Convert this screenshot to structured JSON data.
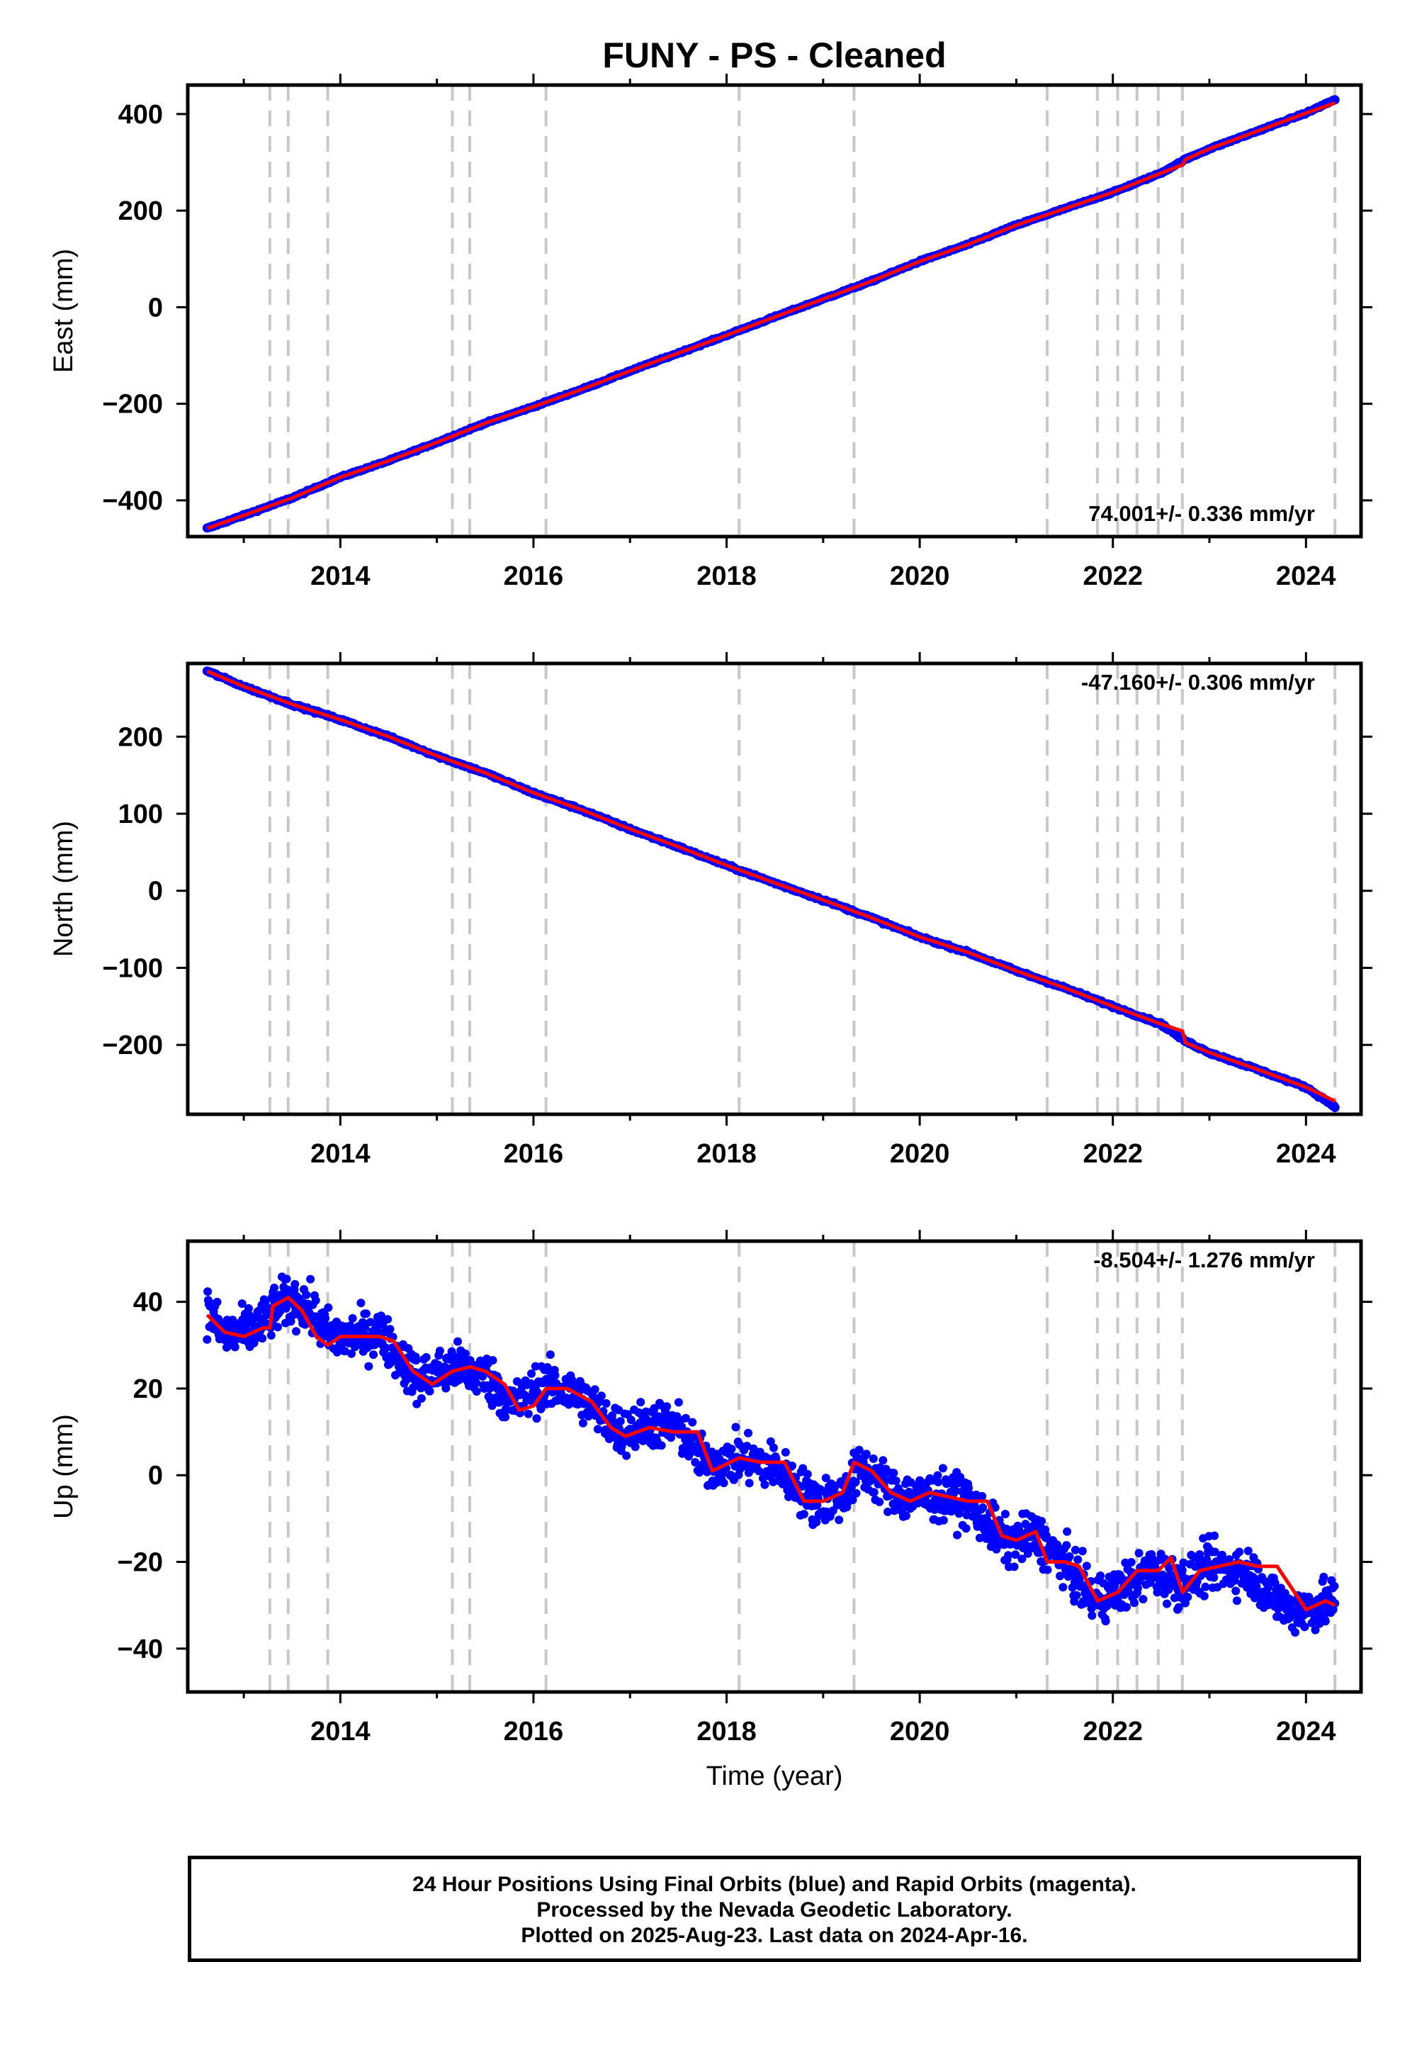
{
  "title": "FUNY  - PS - Cleaned",
  "xlabel": "Time (year)",
  "footer": {
    "line1": "24 Hour Positions Using Final Orbits (blue) and Rapid Orbits (magenta).",
    "line2": "Processed by the Nevada Geodetic Laboratory.",
    "line3": "Plotted on 2025-Aug-23. Last data on 2024-Apr-16."
  },
  "colors": {
    "observed_points": "#0000ff",
    "model_fit": "#ff0000",
    "event_lines": "#c8c8c8",
    "frame": "#000000"
  },
  "chart_data": [
    {
      "type": "scatter",
      "ylabel": "East (mm)",
      "rate_annotation": "74.001+/- 0.336 mm/yr",
      "xlim": [
        2012.42,
        2024.57
      ],
      "ylim": [
        -475,
        460
      ],
      "x_ticks": [
        2014,
        2016,
        2018,
        2020,
        2022,
        2024
      ],
      "y_ticks": [
        -400,
        -200,
        0,
        200,
        400
      ],
      "grid": false,
      "event_lines_x": [
        2013.27,
        2013.46,
        2013.87,
        2015.16,
        2015.34,
        2016.13,
        2018.13,
        2019.32,
        2021.32,
        2021.84,
        2022.05,
        2022.25,
        2022.47,
        2022.72,
        2024.3
      ],
      "series": [
        {
          "kind": "points",
          "x": [
            2012.62,
            2013.0,
            2013.5,
            2014.0,
            2014.5,
            2015.0,
            2015.5,
            2016.0,
            2016.5,
            2017.0,
            2017.5,
            2018.0,
            2018.5,
            2019.0,
            2019.5,
            2020.0,
            2020.5,
            2021.0,
            2021.5,
            2022.0,
            2022.5,
            2022.75,
            2023.0,
            2023.5,
            2024.0,
            2024.3
          ],
          "y": [
            -458,
            -431,
            -395,
            -352,
            -318,
            -280,
            -240,
            -206,
            -170,
            -132,
            -95,
            -58,
            -20,
            17,
            54,
            95,
            130,
            170,
            204,
            238,
            278,
            306,
            328,
            365,
            402,
            430
          ]
        },
        {
          "kind": "line",
          "x": [
            2012.62,
            2013.0,
            2013.5,
            2014.0,
            2014.5,
            2015.0,
            2015.5,
            2016.0,
            2016.5,
            2017.0,
            2017.5,
            2018.0,
            2018.5,
            2019.0,
            2019.5,
            2020.0,
            2020.5,
            2021.0,
            2021.5,
            2022.0,
            2022.5,
            2022.72,
            2022.75,
            2023.0,
            2023.5,
            2024.0,
            2024.3
          ],
          "y": [
            -458,
            -431,
            -395,
            -352,
            -318,
            -280,
            -240,
            -206,
            -170,
            -132,
            -95,
            -58,
            -20,
            17,
            54,
            95,
            130,
            170,
            204,
            238,
            278,
            295,
            306,
            328,
            365,
            402,
            423
          ]
        }
      ]
    },
    {
      "type": "scatter",
      "ylabel": "North (mm)",
      "rate_annotation": "-47.160+/- 0.306 mm/yr",
      "xlim": [
        2012.42,
        2024.57
      ],
      "ylim": [
        -290,
        295
      ],
      "x_ticks": [
        2014,
        2016,
        2018,
        2020,
        2022,
        2024
      ],
      "y_ticks": [
        -200,
        -100,
        0,
        100,
        200
      ],
      "grid": false,
      "event_lines_x": [
        2013.27,
        2013.46,
        2013.87,
        2015.16,
        2015.34,
        2016.13,
        2018.13,
        2019.32,
        2021.32,
        2021.84,
        2022.05,
        2022.25,
        2022.47,
        2022.72,
        2024.3
      ],
      "series": [
        {
          "kind": "points",
          "x": [
            2012.62,
            2013.0,
            2013.5,
            2014.0,
            2014.5,
            2015.0,
            2015.5,
            2016.0,
            2016.5,
            2017.0,
            2017.5,
            2018.0,
            2018.5,
            2019.0,
            2019.5,
            2020.0,
            2020.5,
            2021.0,
            2021.5,
            2022.0,
            2022.5,
            2022.75,
            2023.0,
            2023.5,
            2024.0,
            2024.3
          ],
          "y": [
            285,
            265,
            242,
            222,
            200,
            175,
            153,
            127,
            105,
            80,
            57,
            33,
            10,
            -12,
            -35,
            -60,
            -80,
            -104,
            -126,
            -150,
            -173,
            -195,
            -210,
            -232,
            -255,
            -280
          ]
        },
        {
          "kind": "line",
          "x": [
            2012.62,
            2013.0,
            2013.5,
            2014.0,
            2014.5,
            2015.0,
            2015.5,
            2016.0,
            2016.5,
            2017.0,
            2017.5,
            2018.0,
            2018.5,
            2019.0,
            2019.5,
            2020.0,
            2020.5,
            2021.0,
            2021.5,
            2022.0,
            2022.5,
            2022.72,
            2022.75,
            2023.0,
            2023.5,
            2024.0,
            2024.3
          ],
          "y": [
            285,
            265,
            242,
            222,
            200,
            175,
            153,
            127,
            105,
            80,
            57,
            33,
            10,
            -12,
            -35,
            -60,
            -80,
            -104,
            -126,
            -150,
            -173,
            -182,
            -197,
            -210,
            -232,
            -255,
            -273
          ]
        }
      ]
    },
    {
      "type": "scatter",
      "ylabel": "Up (mm)",
      "rate_annotation": "-8.504+/- 1.276 mm/yr",
      "xlim": [
        2012.42,
        2024.57
      ],
      "ylim": [
        -50,
        54
      ],
      "x_ticks": [
        2014,
        2016,
        2018,
        2020,
        2022,
        2024
      ],
      "y_ticks": [
        -40,
        -20,
        0,
        20,
        40
      ],
      "grid": false,
      "event_lines_x": [
        2013.27,
        2013.46,
        2013.87,
        2015.16,
        2015.34,
        2016.13,
        2018.13,
        2019.32,
        2021.32,
        2021.84,
        2022.05,
        2022.25,
        2022.47,
        2022.72,
        2024.3
      ],
      "series": [
        {
          "kind": "points",
          "x": [
            2012.62,
            2012.8,
            2013.0,
            2013.2,
            2013.4,
            2013.6,
            2013.9,
            2014.2,
            2014.4,
            2014.8,
            2015.2,
            2015.5,
            2015.8,
            2016.1,
            2016.5,
            2016.9,
            2017.2,
            2017.5,
            2017.8,
            2018.1,
            2018.5,
            2018.9,
            2019.2,
            2019.4,
            2019.8,
            2020.2,
            2020.5,
            2020.9,
            2021.2,
            2021.5,
            2021.8,
            2022.1,
            2022.4,
            2022.7,
            2023.0,
            2023.4,
            2023.8,
            2024.0,
            2024.3
          ],
          "y": [
            38,
            32,
            33,
            35,
            40,
            40,
            32,
            32,
            33,
            22,
            25,
            23,
            16,
            21,
            18,
            10,
            12,
            11,
            2,
            4,
            2,
            -6,
            -5,
            2,
            -5,
            -5,
            -6,
            -16,
            -14,
            -20,
            -29,
            -26,
            -22,
            -25,
            -21,
            -22,
            -31,
            -31,
            -29
          ]
        },
        {
          "kind": "line",
          "x": [
            2012.62,
            2012.8,
            2013.0,
            2013.2,
            2013.27,
            2013.3,
            2013.46,
            2013.6,
            2013.75,
            2013.87,
            2014.0,
            2014.2,
            2014.4,
            2014.55,
            2014.75,
            2014.95,
            2015.16,
            2015.34,
            2015.5,
            2015.7,
            2015.85,
            2016.0,
            2016.13,
            2016.35,
            2016.6,
            2016.8,
            2016.95,
            2017.2,
            2017.45,
            2017.7,
            2017.85,
            2018.13,
            2018.35,
            2018.6,
            2018.8,
            2019.0,
            2019.2,
            2019.32,
            2019.5,
            2019.7,
            2019.9,
            2020.1,
            2020.3,
            2020.5,
            2020.7,
            2020.85,
            2021.0,
            2021.2,
            2021.32,
            2021.5,
            2021.65,
            2021.84,
            2022.05,
            2022.25,
            2022.47,
            2022.6,
            2022.72,
            2022.9,
            2023.1,
            2023.3,
            2023.5,
            2023.7,
            2023.85,
            2024.0,
            2024.2,
            2024.3
          ],
          "y": [
            37,
            33,
            32,
            34,
            34,
            39,
            41,
            38,
            32,
            30,
            32,
            32,
            32,
            31,
            24,
            21,
            24,
            25,
            24,
            21,
            15,
            16,
            20,
            20,
            17,
            11,
            9,
            11,
            10,
            10,
            1,
            4,
            3,
            3,
            -6,
            -6,
            -4,
            3,
            1,
            -4,
            -6,
            -4,
            -5,
            -6,
            -6,
            -14,
            -15,
            -13,
            -20,
            -20,
            -21,
            -29,
            -27,
            -22,
            -22,
            -19,
            -27,
            -22,
            -21,
            -20,
            -21,
            -21,
            -26,
            -31,
            -29,
            -30
          ]
        }
      ]
    }
  ]
}
